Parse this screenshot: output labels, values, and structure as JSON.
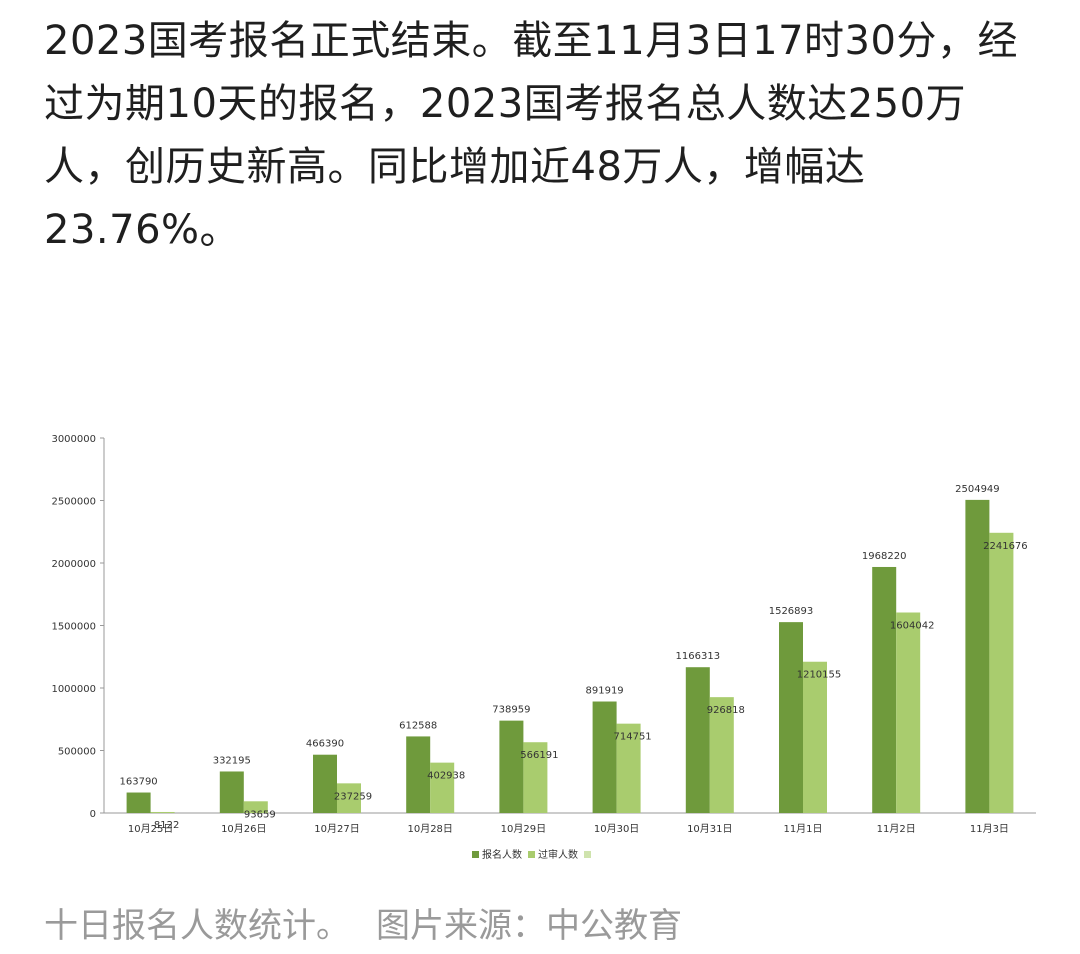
{
  "article": {
    "text": "2023国考报名正式结束。截至11月3日17时30分，经过为期10天的报名，2023国考报名总人数达250万人，创历史新高。同比增加近48万人，增幅达23.76%。"
  },
  "caption": {
    "label": "十日报名人数统计。",
    "source": "图片来源：中公教育"
  },
  "colors": {
    "series1": "#6f9a3c",
    "series2": "#a9cc6e",
    "legend3": "#cfe3ad",
    "axis": "#999999",
    "text": "#333333"
  },
  "chart_data": {
    "type": "bar",
    "categories": [
      "10月25日",
      "10月26日",
      "10月27日",
      "10月28日",
      "10月29日",
      "10月30日",
      "10月31日",
      "11月1日",
      "11月2日",
      "11月3日"
    ],
    "series": [
      {
        "name": "报名人数",
        "values": [
          163790,
          332195,
          466390,
          612588,
          738959,
          891919,
          1166313,
          1526893,
          1968220,
          2504949
        ]
      },
      {
        "name": "过审人数",
        "values": [
          8122,
          93659,
          237259,
          402938,
          566191,
          714751,
          926818,
          1210155,
          1604042,
          2241676
        ]
      }
    ],
    "legend_extra_marker": true,
    "yticks": [
      0,
      500000,
      1000000,
      1500000,
      2000000,
      2500000,
      3000000
    ],
    "ylim": [
      0,
      3000000
    ],
    "grid": false,
    "legend_position": "bottom"
  }
}
